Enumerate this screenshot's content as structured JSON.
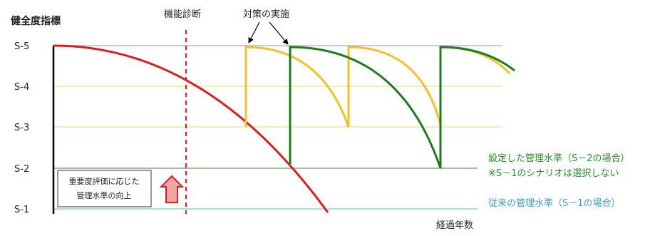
{
  "y_axis_title": "健全度指標",
  "y_levels": [
    "S-5",
    "S-4",
    "S-3",
    "S-2",
    "S-1"
  ],
  "x_axis_title": "経過年数",
  "annotations": {
    "diagnosis": "機能診断",
    "countermeasure": "対策の実施",
    "box_line1": "重要度評価に応じた",
    "box_line2": "管理水準の向上",
    "green_legend_line1": "設定した管理水準（S－2の場合）",
    "green_legend_line2": "※S－1のシナリオは選択しない",
    "blue_legend": "従来の管理水準（S－1の場合）"
  },
  "colors": {
    "red": "#d42020",
    "yellow": "#f2c12e",
    "green": "#1e7b1e",
    "blue": "#5fb6c8",
    "grid": "#e8d47a",
    "green_text": "#2a8a2a",
    "blue_text": "#3aa0c0",
    "arrow_fill": "#f2a5a5",
    "arrow_stroke": "#d42020"
  }
}
